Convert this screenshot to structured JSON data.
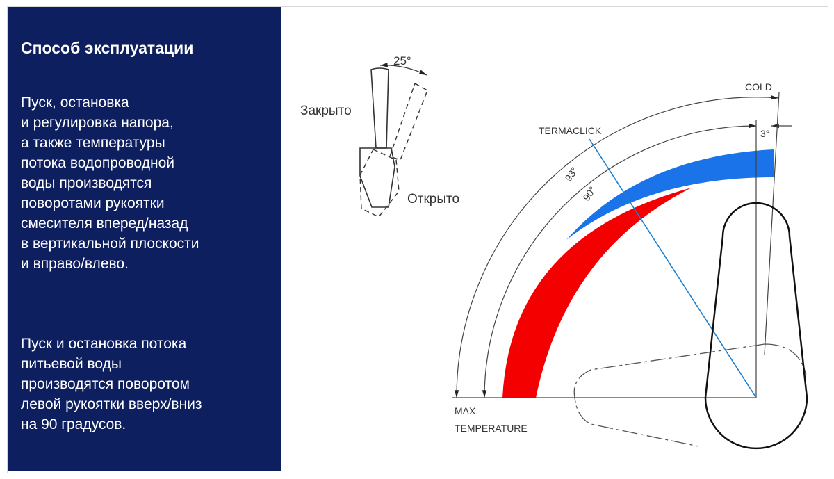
{
  "panel": {
    "title": "Способ эксплуатации",
    "paragraph1": "Пуск, остановка\nи регулировка напора,\nа также температуры\nпотока водопроводной\nводы производятся\nповоротами рукоятки\nсмесителя вперед/назад\nв вертикальной плоскости\nи вправо/влево.",
    "paragraph2": "Пуск и остановка потока\nпитьевой воды\nпроизводятся поворотом\nлевой рукоятки вверх/вниз\nна 90 градусов."
  },
  "lever_diagram": {
    "angle_label": "25°",
    "closed_label": "Закрыто",
    "open_label": "Открыто"
  },
  "temperature_diagram": {
    "cold_label": "COLD",
    "termaclick_label": "TERMACLICK",
    "angle_outer": "93°",
    "angle_inner": "90°",
    "angle_offset": "3°",
    "max_temp_line1": "MAX.",
    "max_temp_line2": "TEMPERATURE",
    "colors": {
      "panel": "#0e1f5f",
      "cold": "#1a73e8",
      "hot": "#f40000",
      "termaclick_line": "#1a7fd0"
    }
  }
}
